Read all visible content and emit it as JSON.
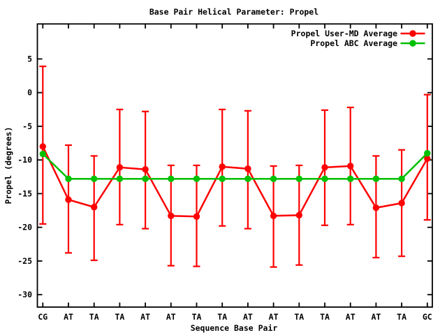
{
  "window": {
    "background_color": "#ffffff",
    "foreground_color": "#000000"
  },
  "chart_data": {
    "type": "line",
    "title": "Base Pair Helical Parameter: Propel",
    "xlabel": "Sequence Base Pair",
    "ylabel": "Propel (degrees)",
    "grid": false,
    "legend_position": "top-right-inside",
    "categories": [
      "CG",
      "AT",
      "TA",
      "TA",
      "AT",
      "AT",
      "TA",
      "TA",
      "AT",
      "AT",
      "TA",
      "TA",
      "AT",
      "AT",
      "TA",
      "GC"
    ],
    "yticks": [
      5,
      0,
      -5,
      -10,
      -15,
      -20,
      -25,
      -30
    ],
    "ylim": [
      -31.8,
      10.2
    ],
    "series": [
      {
        "name": "Propel User-MD Average",
        "color": "#ff0000",
        "marker": "filled-circle",
        "has_error_bars": true,
        "values": [
          -8.0,
          -15.9,
          -17.0,
          -11.1,
          -11.4,
          -18.3,
          -18.4,
          -11.0,
          -11.3,
          -18.3,
          -18.2,
          -11.1,
          -10.9,
          -17.1,
          -16.4,
          -9.8
        ],
        "err_high": [
          3.9,
          -7.8,
          -9.4,
          -2.5,
          -2.8,
          -10.8,
          -10.8,
          -2.5,
          -2.7,
          -10.9,
          -10.8,
          -2.6,
          -2.2,
          -9.4,
          -8.5,
          -0.3
        ],
        "err_low": [
          -19.5,
          -23.8,
          -24.9,
          -19.6,
          -20.2,
          -25.7,
          -25.8,
          -19.8,
          -20.2,
          -25.9,
          -25.6,
          -19.7,
          -19.6,
          -24.5,
          -24.3,
          -18.9
        ]
      },
      {
        "name": "Propel ABC Average",
        "color": "#00c000",
        "marker": "filled-circle",
        "has_error_bars": false,
        "values": [
          -9.1,
          -12.8,
          -12.8,
          -12.8,
          -12.8,
          -12.8,
          -12.8,
          -12.8,
          -12.8,
          -12.8,
          -12.8,
          -12.8,
          -12.8,
          -12.8,
          -12.8,
          -9.0
        ]
      }
    ]
  }
}
